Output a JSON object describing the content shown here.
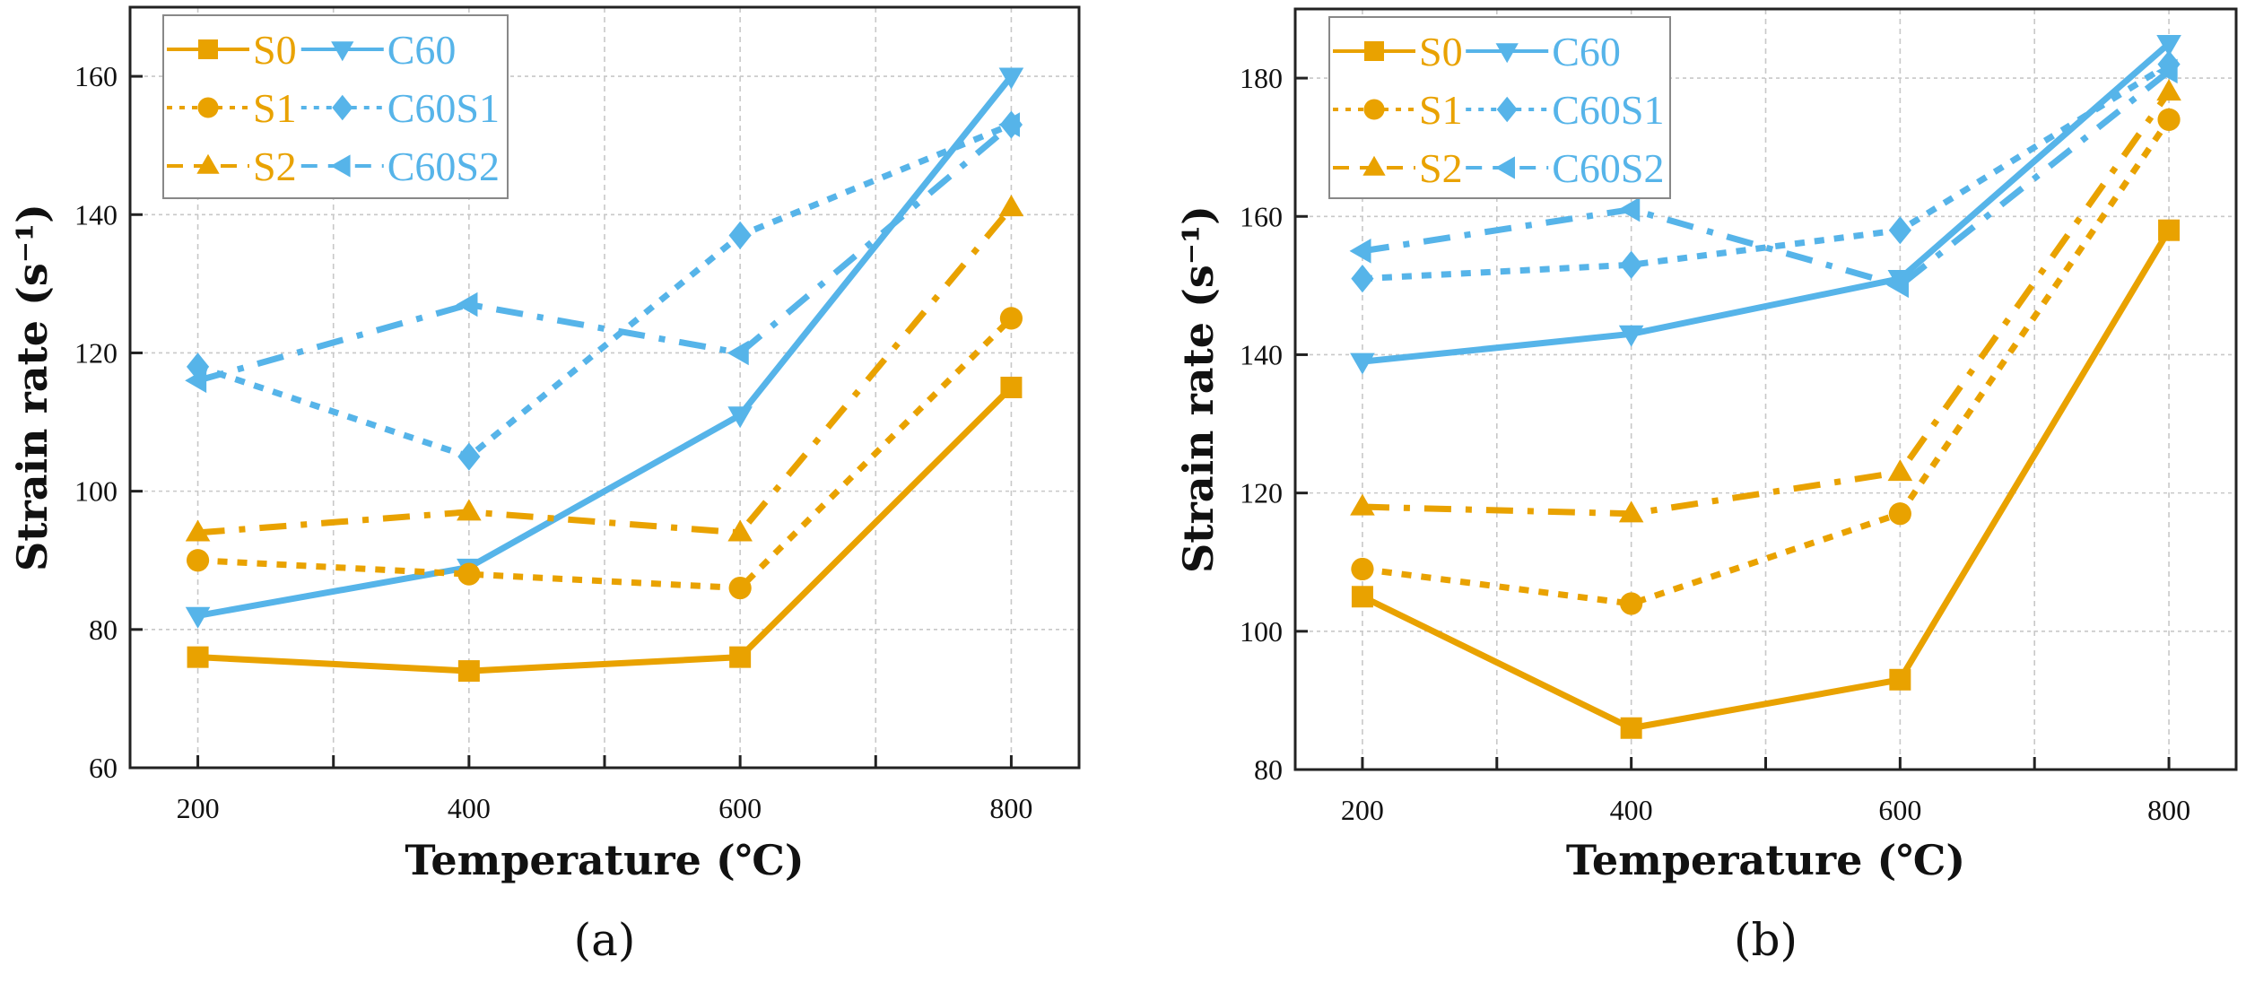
{
  "colors": {
    "orange": "#E9A200",
    "blue": "#56B4E9"
  },
  "chart_data": [
    {
      "type": "line",
      "panel_label": "(a)",
      "xlabel": "Temperature (℃)",
      "ylabel": "Strain rate (s⁻¹)",
      "x": [
        200,
        400,
        600,
        800
      ],
      "xticks": [
        200,
        400,
        600,
        800
      ],
      "yticks": [
        60,
        80,
        100,
        120,
        140,
        160
      ],
      "xlim": [
        150,
        850
      ],
      "ylim": [
        60,
        170
      ],
      "grid": true,
      "legend_position": "top-left",
      "series": [
        {
          "name": "S0",
          "color": "orange",
          "marker": "square",
          "dash": "solid",
          "values": [
            76,
            74,
            76,
            115
          ]
        },
        {
          "name": "C60",
          "color": "blue",
          "marker": "triangle-down",
          "dash": "solid",
          "values": [
            82,
            89,
            111,
            160
          ]
        },
        {
          "name": "S1",
          "color": "orange",
          "marker": "circle",
          "dash": "dot",
          "values": [
            90,
            88,
            86,
            125
          ]
        },
        {
          "name": "C60S1",
          "color": "blue",
          "marker": "diamond",
          "dash": "dot",
          "values": [
            118,
            105,
            137,
            153
          ]
        },
        {
          "name": "S2",
          "color": "orange",
          "marker": "triangle-up",
          "dash": "dashdot",
          "values": [
            94,
            97,
            94,
            141
          ]
        },
        {
          "name": "C60S2",
          "color": "blue",
          "marker": "triangle-left",
          "dash": "dashdot",
          "values": [
            116,
            127,
            120,
            153
          ]
        }
      ]
    },
    {
      "type": "line",
      "panel_label": "(b)",
      "xlabel": "Temperature (℃)",
      "ylabel": "Strain rate (s⁻¹)",
      "x": [
        200,
        400,
        600,
        800
      ],
      "xticks": [
        200,
        400,
        600,
        800
      ],
      "yticks": [
        80,
        100,
        120,
        140,
        160,
        180
      ],
      "xlim": [
        150,
        850
      ],
      "ylim": [
        80,
        190
      ],
      "grid": true,
      "legend_position": "top-left",
      "series": [
        {
          "name": "S0",
          "color": "orange",
          "marker": "square",
          "dash": "solid",
          "values": [
            105,
            86,
            93,
            158
          ]
        },
        {
          "name": "C60",
          "color": "blue",
          "marker": "triangle-down",
          "dash": "solid",
          "values": [
            139,
            143,
            151,
            185
          ]
        },
        {
          "name": "S1",
          "color": "orange",
          "marker": "circle",
          "dash": "dot",
          "values": [
            109,
            104,
            117,
            174
          ]
        },
        {
          "name": "C60S1",
          "color": "blue",
          "marker": "diamond",
          "dash": "dot",
          "values": [
            151,
            153,
            158,
            182
          ]
        },
        {
          "name": "S2",
          "color": "orange",
          "marker": "triangle-up",
          "dash": "dashdot",
          "values": [
            118,
            117,
            123,
            178
          ]
        },
        {
          "name": "C60S2",
          "color": "blue",
          "marker": "triangle-left",
          "dash": "dashdot",
          "values": [
            155,
            161,
            150,
            181
          ]
        }
      ]
    }
  ]
}
